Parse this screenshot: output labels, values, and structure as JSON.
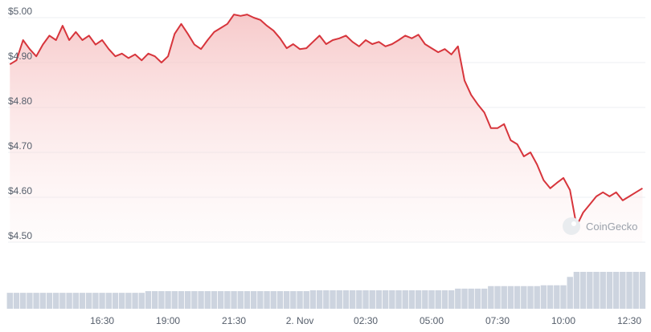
{
  "chart_data": {
    "type": "area",
    "color": "#d7353c",
    "volume_color": "#cdd4df",
    "watermark": "CoinGecko",
    "grid": true,
    "xlim": [
      12.93,
      37.11
    ],
    "ylim": [
      4.5,
      5.02
    ],
    "yticks": [
      {
        "value": 4.5,
        "label": "$4.50"
      },
      {
        "value": 4.6,
        "label": "$4.60"
      },
      {
        "value": 4.7,
        "label": "$4.70"
      },
      {
        "value": 4.8,
        "label": "$4.80"
      },
      {
        "value": 4.9,
        "label": "$4.90"
      },
      {
        "value": 5.0,
        "label": "$5.00"
      }
    ],
    "xticks": [
      {
        "value": 16.5,
        "label": "16:30"
      },
      {
        "value": 19,
        "label": "19:00"
      },
      {
        "value": 21.5,
        "label": "21:30"
      },
      {
        "value": 24,
        "label": "2. Nov"
      },
      {
        "value": 26.5,
        "label": "02:30"
      },
      {
        "value": 29,
        "label": "05:00"
      },
      {
        "value": 31.5,
        "label": "07:30"
      },
      {
        "value": 34,
        "label": "10:00"
      },
      {
        "value": 36.5,
        "label": "12:30"
      }
    ],
    "x": [
      13,
      13.25,
      13.5,
      13.75,
      14,
      14.25,
      14.5,
      14.75,
      15,
      15.25,
      15.5,
      15.75,
      16,
      16.25,
      16.5,
      16.75,
      17,
      17.25,
      17.5,
      17.75,
      18,
      18.25,
      18.5,
      18.75,
      19,
      19.25,
      19.5,
      19.75,
      20,
      20.25,
      20.5,
      20.75,
      21,
      21.25,
      21.5,
      21.75,
      22,
      22.25,
      22.5,
      22.75,
      23,
      23.25,
      23.5,
      23.75,
      24,
      24.25,
      24.5,
      24.75,
      25,
      25.25,
      25.5,
      25.75,
      26,
      26.25,
      26.5,
      26.75,
      27,
      27.25,
      27.5,
      27.75,
      28,
      28.25,
      28.5,
      28.75,
      29,
      29.25,
      29.5,
      29.75,
      30,
      30.25,
      30.5,
      30.75,
      31,
      31.25,
      31.5,
      31.75,
      32,
      32.25,
      32.5,
      32.75,
      33,
      33.25,
      33.5,
      33.75,
      34,
      34.25,
      34.5,
      34.75,
      35,
      35.25,
      35.5,
      35.75,
      36,
      36.25,
      36.5,
      36.75,
      37
    ],
    "values": [
      4.896,
      4.905,
      4.95,
      4.93,
      4.914,
      4.94,
      4.96,
      4.95,
      4.982,
      4.95,
      4.968,
      4.95,
      4.96,
      4.94,
      4.95,
      4.93,
      4.914,
      4.92,
      4.91,
      4.918,
      4.905,
      4.92,
      4.914,
      4.9,
      4.914,
      4.964,
      4.986,
      4.964,
      4.94,
      4.93,
      4.95,
      4.968,
      4.977,
      4.986,
      5.007,
      5.004,
      5.007,
      5.0,
      4.995,
      4.982,
      4.971,
      4.954,
      4.932,
      4.941,
      4.93,
      4.932,
      4.946,
      4.96,
      4.941,
      4.95,
      4.954,
      4.96,
      4.946,
      4.936,
      4.95,
      4.941,
      4.946,
      4.936,
      4.941,
      4.95,
      4.96,
      4.954,
      4.962,
      4.941,
      4.932,
      4.923,
      4.93,
      4.918,
      4.936,
      4.86,
      4.828,
      4.807,
      4.789,
      4.754,
      4.754,
      4.763,
      4.727,
      4.718,
      4.691,
      4.7,
      4.673,
      4.638,
      4.62,
      4.632,
      4.643,
      4.616,
      4.536,
      4.566,
      4.584,
      4.602,
      4.611,
      4.602,
      4.611,
      4.593,
      4.602,
      4.611,
      4.62
    ],
    "volumes": [
      19,
      19,
      19,
      19,
      19,
      19,
      19,
      19,
      19,
      19,
      19,
      19,
      19,
      19,
      19,
      19,
      19,
      19,
      19,
      19,
      19,
      21,
      21,
      21,
      21,
      21,
      21,
      21,
      21,
      21,
      21,
      21,
      21,
      21,
      21,
      21,
      21,
      21,
      21,
      21,
      21,
      21,
      21,
      21,
      21,
      21,
      22,
      22,
      22,
      22,
      22,
      22,
      22,
      22,
      22,
      22,
      22,
      22,
      22,
      22,
      22,
      22,
      22,
      22,
      22,
      22,
      22,
      22,
      24,
      24,
      24,
      24,
      24,
      27,
      27,
      27,
      27,
      27,
      27,
      27,
      27,
      28,
      28,
      28,
      28,
      38,
      44,
      44,
      44,
      44,
      44,
      44,
      44,
      44,
      44,
      44,
      44
    ]
  }
}
